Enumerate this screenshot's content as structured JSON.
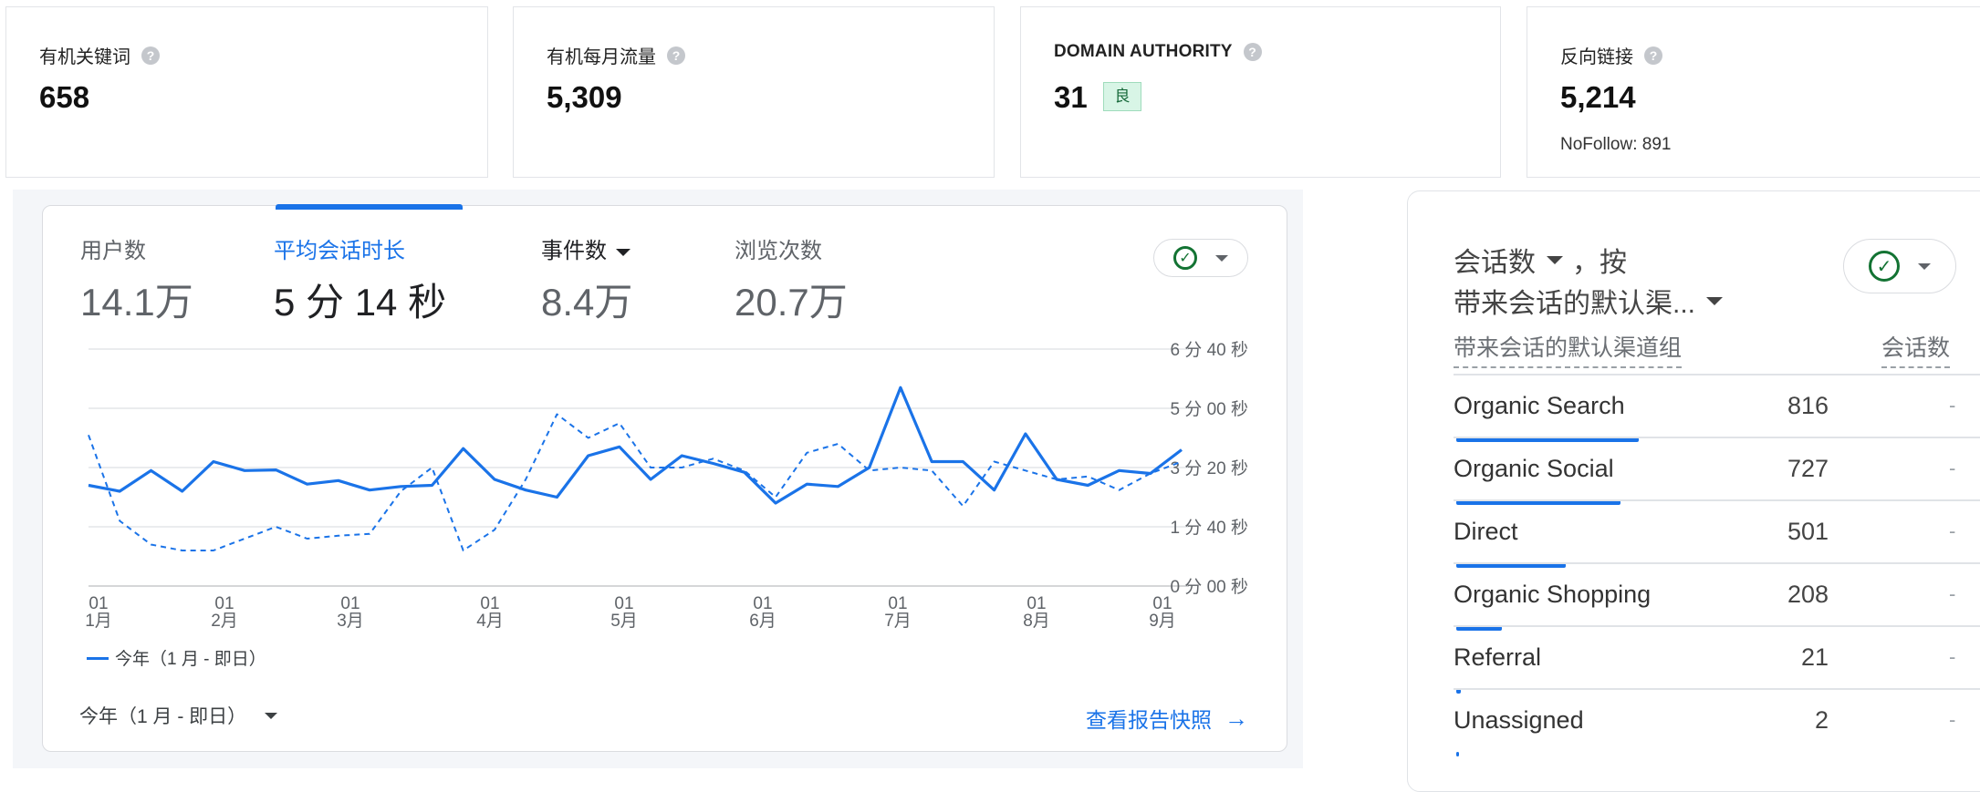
{
  "stats": [
    {
      "label": "有机关键词",
      "value": "658"
    },
    {
      "label": "有机每月流量",
      "value": "5,309"
    },
    {
      "label": "DOMAIN AUTHORITY",
      "value": "31",
      "badge": "良"
    },
    {
      "label": "反向链接",
      "value": "5,214",
      "note": "NoFollow: 891"
    }
  ],
  "help_icon_glyph": "?",
  "analytics": {
    "metrics": [
      {
        "label": "用户数",
        "value": "14.1万"
      },
      {
        "label": "平均会话时长",
        "value": "5 分 14 秒"
      },
      {
        "label": "事件数",
        "value": "8.4万"
      },
      {
        "label": "浏览次数",
        "value": "20.7万"
      }
    ],
    "compare_icon": "check-circle-icon",
    "legend": "今年（1 月 - 即日）",
    "date_range": "今年（1 月 - 即日）",
    "report_link": "查看报告快照",
    "report_arrow": "→"
  },
  "chart_data": {
    "type": "line",
    "x_ticks": [
      {
        "day": "01",
        "month": "1月"
      },
      {
        "day": "01",
        "month": "2月"
      },
      {
        "day": "01",
        "month": "3月"
      },
      {
        "day": "01",
        "month": "4月"
      },
      {
        "day": "01",
        "month": "5月"
      },
      {
        "day": "01",
        "month": "6月"
      },
      {
        "day": "01",
        "month": "7月"
      },
      {
        "day": "01",
        "month": "8月"
      },
      {
        "day": "01",
        "month": "9月"
      }
    ],
    "y_ticks": [
      "0 分 00 秒",
      "1 分 40 秒",
      "3 分 20 秒",
      "5 分 00 秒",
      "6 分 40 秒"
    ],
    "ylim_seconds": [
      0,
      400
    ],
    "grid": true,
    "legend_position": "bottom-left",
    "series": [
      {
        "style": "solid",
        "color": "#1a73e8",
        "values_seconds": [
          170,
          160,
          195,
          160,
          210,
          195,
          196,
          172,
          178,
          162,
          168,
          170,
          232,
          180,
          162,
          150,
          220,
          235,
          180,
          220,
          207,
          192,
          140,
          172,
          168,
          200,
          335,
          210,
          210,
          162,
          257,
          180,
          170,
          195,
          190,
          230
        ]
      },
      {
        "style": "dashed",
        "color": "#1a73e8",
        "values_seconds": [
          255,
          110,
          70,
          60,
          60,
          80,
          100,
          80,
          85,
          88,
          160,
          200,
          60,
          95,
          180,
          290,
          250,
          275,
          200,
          200,
          215,
          195,
          150,
          225,
          240,
          195,
          200,
          195,
          135,
          210,
          195,
          180,
          185,
          162,
          190,
          210
        ]
      }
    ]
  },
  "channels": {
    "title_metric": "会话数",
    "title_by": "，按",
    "title_dimension": "带来会话的默认渠...",
    "col_dimension": "带来会话的默认渠道组",
    "col_metric": "会话数",
    "rows": [
      {
        "label": "Organic Search",
        "value": "816",
        "share": 0.2
      },
      {
        "label": "Organic Social",
        "value": "727",
        "share": 0.18
      },
      {
        "label": "Direct",
        "value": "501",
        "share": 0.12
      },
      {
        "label": "Organic Shopping",
        "value": "208",
        "share": 0.05
      },
      {
        "label": "Referral",
        "value": "21",
        "share": 0.005
      },
      {
        "label": "Unassigned",
        "value": "2",
        "share": 0.002
      }
    ],
    "row_placeholder": "-"
  }
}
